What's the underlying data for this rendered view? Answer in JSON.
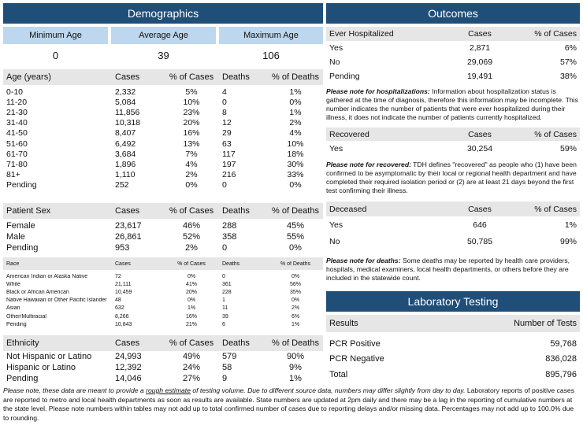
{
  "demographics": {
    "title": "Demographics",
    "age_summary": {
      "headers": [
        "Minimum Age",
        "Average Age",
        "Maximum Age"
      ],
      "values": [
        "0",
        "39",
        "106"
      ]
    },
    "age_table": {
      "headers": [
        "Age (years)",
        "Cases",
        "% of Cases",
        "Deaths",
        "% of Deaths"
      ],
      "rows": [
        [
          "0-10",
          "2,332",
          "5%",
          "4",
          "1%"
        ],
        [
          "11-20",
          "5,084",
          "10%",
          "0",
          "0%"
        ],
        [
          "21-30",
          "11,856",
          "23%",
          "8",
          "1%"
        ],
        [
          "31-40",
          "10,318",
          "20%",
          "12",
          "2%"
        ],
        [
          "41-50",
          "8,407",
          "16%",
          "29",
          "4%"
        ],
        [
          "51-60",
          "6,492",
          "13%",
          "63",
          "10%"
        ],
        [
          "61-70",
          "3,684",
          "7%",
          "117",
          "18%"
        ],
        [
          "71-80",
          "1,896",
          "4%",
          "197",
          "30%"
        ],
        [
          "81+",
          "1,110",
          "2%",
          "216",
          "33%"
        ],
        [
          "Pending",
          "252",
          "0%",
          "0",
          "0%"
        ]
      ]
    },
    "sex_table": {
      "headers": [
        "Patient Sex",
        "Cases",
        "% of Cases",
        "Deaths",
        "% of Deaths"
      ],
      "rows": [
        [
          "Female",
          "23,617",
          "46%",
          "288",
          "45%"
        ],
        [
          "Male",
          "26,861",
          "52%",
          "358",
          "55%"
        ],
        [
          "Pending",
          "953",
          "2%",
          "0",
          "0%"
        ]
      ]
    },
    "race_table": {
      "headers": [
        "Race",
        "Cases",
        "% of Cases",
        "Deaths",
        "% of Deaths"
      ],
      "rows": [
        [
          "American Indian or Alaska Native",
          "72",
          "0%",
          "0",
          "0%"
        ],
        [
          "White",
          "21,111",
          "41%",
          "361",
          "56%"
        ],
        [
          "Black or African American",
          "10,459",
          "20%",
          "228",
          "35%"
        ],
        [
          "Native Hawaiian or Other Pacific Islander",
          "48",
          "0%",
          "1",
          "0%"
        ],
        [
          "Asian",
          "632",
          "1%",
          "11",
          "2%"
        ],
        [
          "Other/Multiracial",
          "8,266",
          "16%",
          "39",
          "6%"
        ],
        [
          "Pending",
          "10,843",
          "21%",
          "6",
          "1%"
        ]
      ]
    },
    "ethnicity_table": {
      "headers": [
        "Ethnicity",
        "Cases",
        "% of Cases",
        "Deaths",
        "% of Deaths"
      ],
      "rows": [
        [
          "Not Hispanic or Latino",
          "24,993",
          "49%",
          "579",
          "90%"
        ],
        [
          "Hispanic or Latino",
          "12,392",
          "24%",
          "58",
          "9%"
        ],
        [
          "Pending",
          "14,046",
          "27%",
          "9",
          "1%"
        ]
      ]
    }
  },
  "outcomes": {
    "title": "Outcomes",
    "hospitalized_table": {
      "headers": [
        "Ever Hospitalized",
        "Cases",
        "% of Cases"
      ],
      "rows": [
        [
          "Yes",
          "2,871",
          "6%"
        ],
        [
          "No",
          "29,069",
          "57%"
        ],
        [
          "Pending",
          "19,491",
          "38%"
        ]
      ]
    },
    "hospitalized_note": {
      "label": "Please note for hospitalizations:",
      "text_before": " Information about hospitalization status is gathered at the time of diagnosis, therefore this information may be incomplete. This number indicates the number of patients that were ",
      "emphasis": "ever",
      "text_after": " hospitalized during their illness, it does not indicate the number of patients currently hospitalized."
    },
    "recovered_table": {
      "headers": [
        "Recovered",
        "Cases",
        "% of Cases"
      ],
      "rows": [
        [
          "Yes",
          "30,254",
          "59%"
        ]
      ]
    },
    "recovered_note": {
      "label": "Please note for recovered:",
      "text": "  TDH defines \"recovered\" as people who (1) have been confirmed to be asymptomatic by their local or regional health department and have completed their required isolation period or (2) are at least 21 days beyond the first test confirming their illness."
    },
    "deceased_table": {
      "headers": [
        "Deceased",
        "Cases",
        "% of Cases"
      ],
      "rows": [
        [
          "Yes",
          "646",
          "1%"
        ],
        [
          "No",
          "50,785",
          "99%"
        ]
      ]
    },
    "deceased_note": {
      "label": "Please note for deaths:",
      "text": " Some deaths may be reported by health care providers, hospitals, medical examiners, local health departments, or others before they are included in the statewide count."
    }
  },
  "laboratory": {
    "title": "Laboratory Testing",
    "table": {
      "headers": [
        "Results",
        "Number of Tests"
      ],
      "rows": [
        [
          "PCR Positive",
          "59,768"
        ],
        [
          "PCR Negative",
          "836,028"
        ],
        [
          "Total",
          "895,796"
        ]
      ]
    }
  },
  "footnote": {
    "italic_before": "Please note, these data are meant to provide a ",
    "underlined": "rough estimate",
    "italic_after": " of testing volume. Due to different source data, numbers may differ slightly from day to day.",
    "text": "  Laboratory reports of positive cases are reported to metro and local health departments as soon as results are available. State numbers are updated at 2pm daily and there may be a lag in the reporting of cumulative numbers at the state level. Please note numbers within tables may not add up to total confirmed number of cases due to reporting delays and/or missing data. Percentages may not add up to 100.0% due to rounding."
  }
}
